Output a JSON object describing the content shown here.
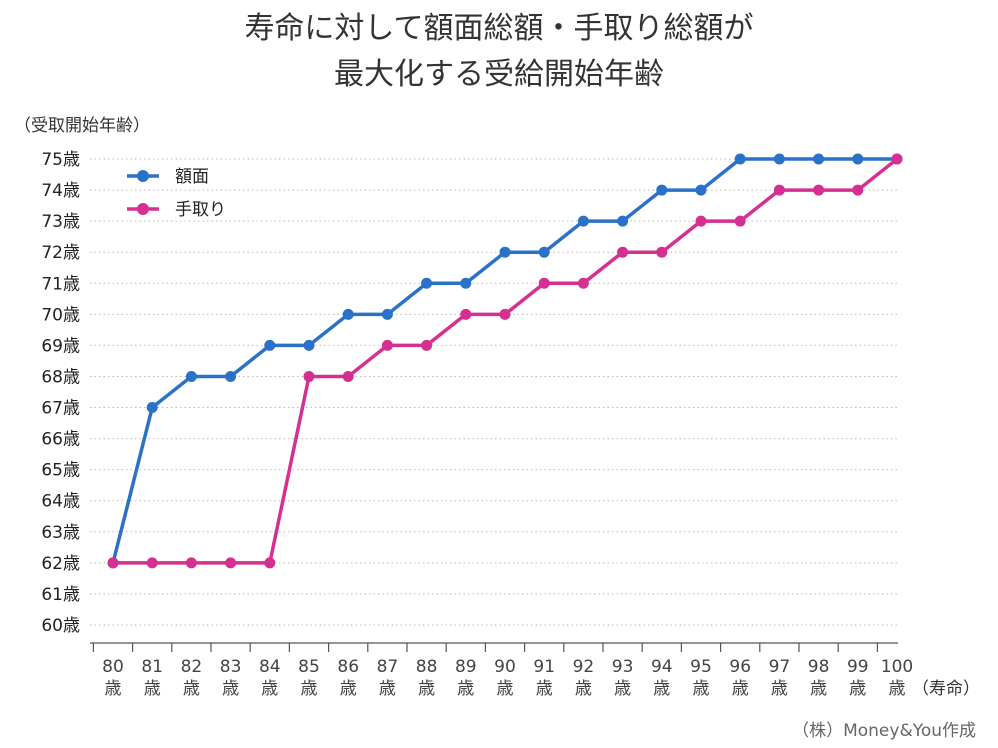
{
  "chart_data": {
    "type": "line",
    "title_lines": [
      "寿命に対して額面総額・手取り総額が",
      "最大化する受給開始年齢"
    ],
    "ylabel": "（受取開始年齢）",
    "xlabel": "（寿命）",
    "credit": "（株）Money&You作成",
    "x": [
      80,
      81,
      82,
      83,
      84,
      85,
      86,
      87,
      88,
      89,
      90,
      91,
      92,
      93,
      94,
      95,
      96,
      97,
      98,
      99,
      100
    ],
    "x_tick_suffix": "歳",
    "y_tick_labels": [
      "60歳",
      "61歳",
      "62歳",
      "63歳",
      "64歳",
      "65歳",
      "66歳",
      "67歳",
      "68歳",
      "69歳",
      "70歳",
      "71歳",
      "72歳",
      "73歳",
      "74歳",
      "75歳"
    ],
    "ylim": [
      60,
      75
    ],
    "grid": true,
    "legend_position": "top-left",
    "series": [
      {
        "name": "額面",
        "color": "#2a72c9",
        "values": [
          62,
          67,
          68,
          68,
          69,
          69,
          70,
          70,
          71,
          71,
          72,
          72,
          73,
          73,
          74,
          74,
          75,
          75,
          75,
          75,
          75
        ]
      },
      {
        "name": "手取り",
        "color": "#d62f92",
        "values": [
          62,
          62,
          62,
          62,
          62,
          68,
          68,
          69,
          69,
          70,
          70,
          71,
          71,
          72,
          72,
          73,
          73,
          74,
          74,
          74,
          75
        ]
      }
    ]
  }
}
